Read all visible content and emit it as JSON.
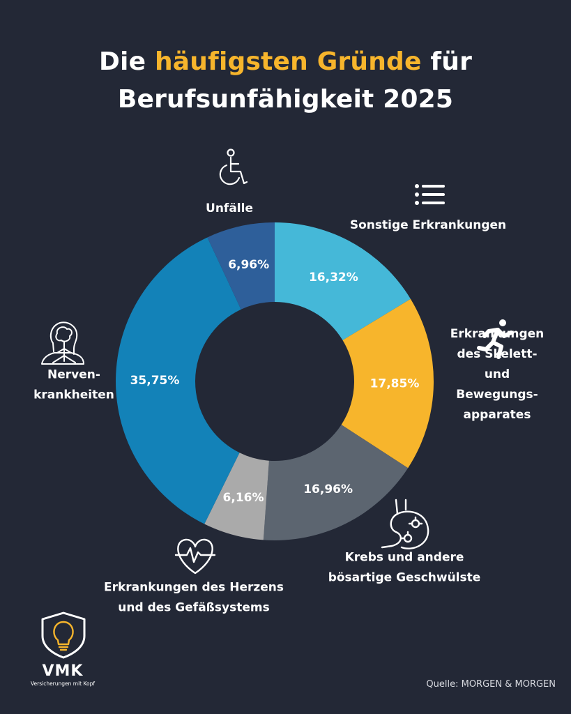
{
  "header": {
    "title_pre": "Die",
    "title_highlight": "häufigsten Gründe",
    "title_post": "für",
    "title_line2": "Berufsunfähigkeit 2025"
  },
  "colors": {
    "background": "#232836",
    "accent": "#f7b52c"
  },
  "chart_data": {
    "type": "pie",
    "title": "Die häufigsten Gründe für Berufsunfähigkeit 2025",
    "slices": [
      {
        "name": "Sonstige Erkrankungen",
        "lines": [
          "Sonstige Erkrankungen"
        ],
        "value": 16.32,
        "label": "16,32%",
        "color": "#45b8d8",
        "icon": "list-icon"
      },
      {
        "name": "Erkrankungen des Skelett- und Bewegungsapparates",
        "lines": [
          "Erkrankungen",
          "des Skelett-",
          "und",
          "Bewegungs-",
          "apparates"
        ],
        "value": 17.85,
        "label": "17,85%",
        "color": "#f7b52c",
        "icon": "running-person-icon"
      },
      {
        "name": "Krebs und andere bösartige Geschwülste",
        "lines": [
          "Krebs und andere",
          "bösartige Geschwülste"
        ],
        "value": 16.96,
        "label": "16,96%",
        "color": "#5c6570",
        "icon": "stomach-icon"
      },
      {
        "name": "Erkrankungen des Herzens und des Gefäßsystems",
        "lines": [
          "Erkrankungen des Herzens",
          "und des Gefäßsystems"
        ],
        "value": 6.16,
        "label": "6,16%",
        "color": "#aaaaaa",
        "icon": "heart-pulse-icon"
      },
      {
        "name": "Nervenkrankheiten",
        "lines": [
          "Nerven-",
          "krankheiten"
        ],
        "value": 35.75,
        "label": "35,75%",
        "color": "#1382b8",
        "icon": "brain-head-icon"
      },
      {
        "name": "Unfälle",
        "lines": [
          "Unfälle"
        ],
        "value": 6.96,
        "label": "6,96%",
        "color": "#2e5f9a",
        "icon": "wheelchair-icon"
      }
    ]
  },
  "footer": {
    "source": "Quelle: MORGEN & MORGEN",
    "logo_name": "VMK",
    "logo_tagline": "Versicherungen mit Kopf",
    "logo_icon": "lightbulb-shield-icon"
  }
}
